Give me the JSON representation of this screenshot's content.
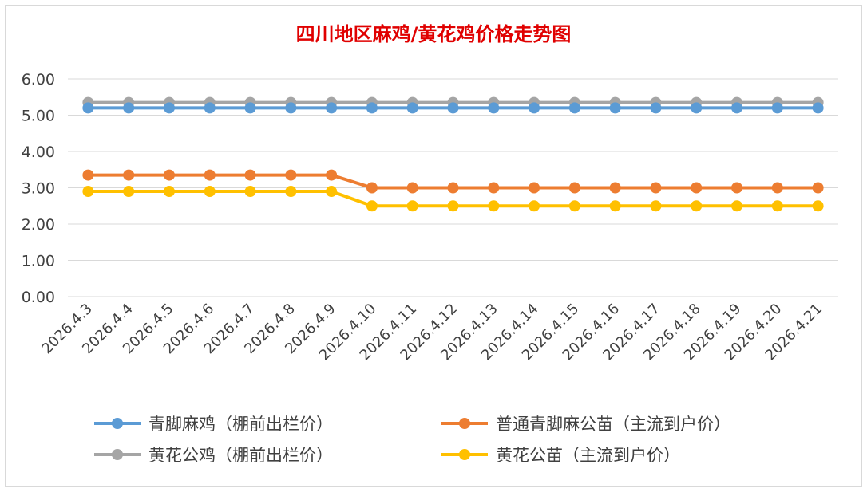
{
  "chart_data": {
    "type": "line",
    "title": "四川地区麻鸡/黄花鸡价格走势图",
    "xlabel": "",
    "ylabel": "",
    "ylim": [
      0,
      6
    ],
    "y_ticks": [
      "0.00",
      "1.00",
      "2.00",
      "3.00",
      "4.00",
      "5.00",
      "6.00"
    ],
    "grid": true,
    "legend_position": "bottom",
    "categories": [
      "2026.4.3",
      "2026.4.4",
      "2026.4.5",
      "2026.4.6",
      "2026.4.7",
      "2026.4.8",
      "2026.4.9",
      "2026.4.10",
      "2026.4.11",
      "2026.4.12",
      "2026.4.13",
      "2026.4.14",
      "2026.4.15",
      "2026.4.16",
      "2026.4.17",
      "2026.4.18",
      "2026.4.19",
      "2026.4.20",
      "2026.4.21"
    ],
    "series": [
      {
        "name": "青脚麻鸡（棚前出栏价）",
        "color": "#5b9bd5",
        "values": [
          5.2,
          5.2,
          5.2,
          5.2,
          5.2,
          5.2,
          5.2,
          5.2,
          5.2,
          5.2,
          5.2,
          5.2,
          5.2,
          5.2,
          5.2,
          5.2,
          5.2,
          5.2,
          5.2
        ]
      },
      {
        "name": "普通青脚麻公苗（主流到户价）",
        "color": "#ed7d31",
        "values": [
          3.35,
          3.35,
          3.35,
          3.35,
          3.35,
          3.35,
          3.35,
          3.0,
          3.0,
          3.0,
          3.0,
          3.0,
          3.0,
          3.0,
          3.0,
          3.0,
          3.0,
          3.0,
          3.0
        ]
      },
      {
        "name": "黄花公鸡（棚前出栏价）",
        "color": "#a5a5a5",
        "values": [
          5.35,
          5.35,
          5.35,
          5.35,
          5.35,
          5.35,
          5.35,
          5.35,
          5.35,
          5.35,
          5.35,
          5.35,
          5.35,
          5.35,
          5.35,
          5.35,
          5.35,
          5.35,
          5.35
        ]
      },
      {
        "name": "黄花公苗（主流到户价）",
        "color": "#ffc000",
        "values": [
          2.9,
          2.9,
          2.9,
          2.9,
          2.9,
          2.9,
          2.9,
          2.5,
          2.5,
          2.5,
          2.5,
          2.5,
          2.5,
          2.5,
          2.5,
          2.5,
          2.5,
          2.5,
          2.5
        ]
      }
    ]
  }
}
